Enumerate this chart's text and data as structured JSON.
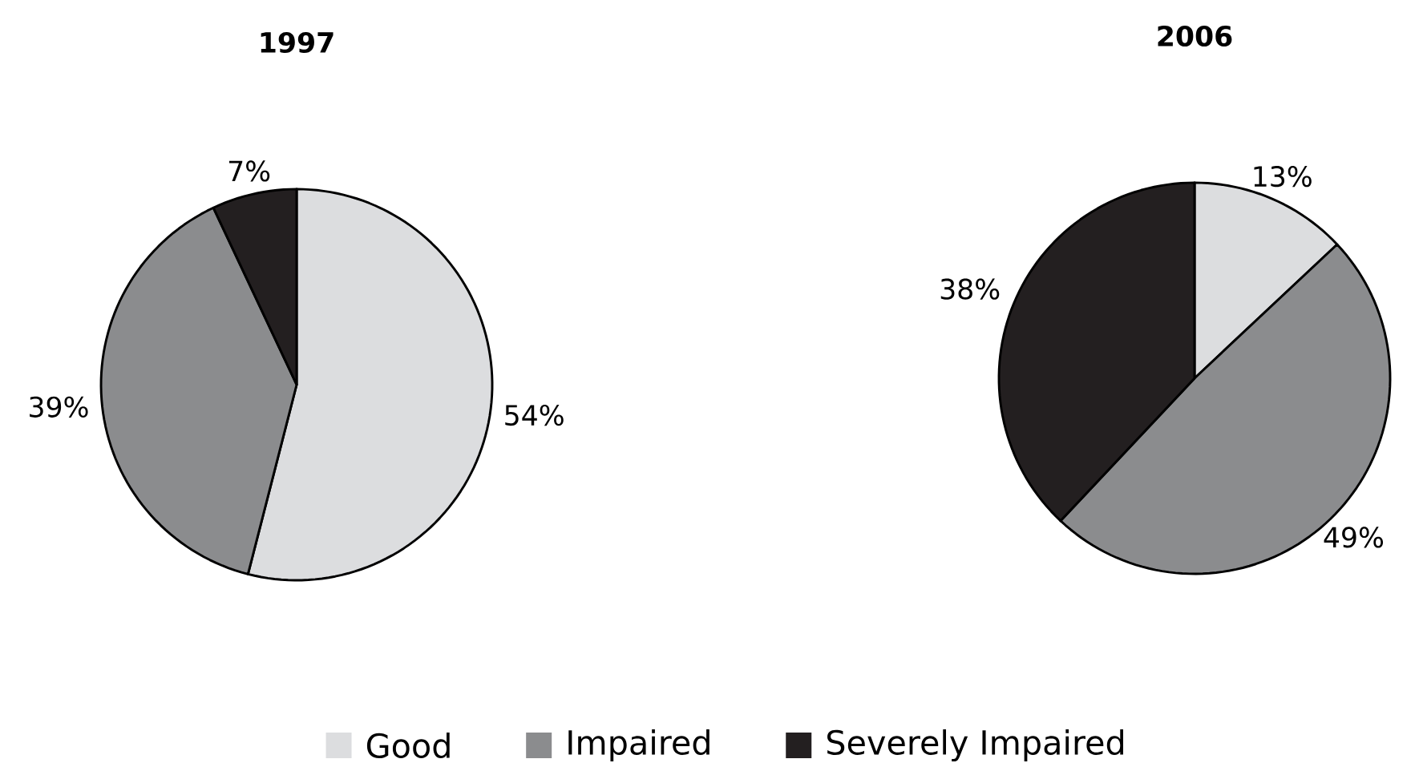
{
  "chart_data": [
    {
      "type": "pie",
      "title": "1997",
      "categories": [
        "Good",
        "Impaired",
        "Severely Impaired"
      ],
      "values": [
        54,
        39,
        7
      ],
      "value_labels": [
        "54%",
        "39%",
        "7%"
      ],
      "colors": [
        "#dcdddf",
        "#8b8c8e",
        "#231f20"
      ],
      "legend": "bottom"
    },
    {
      "type": "pie",
      "title": "2006",
      "values": [
        13,
        49,
        38
      ],
      "value_labels": [
        "13%",
        "49%",
        "38%"
      ],
      "colors": [
        "#dcdddf",
        "#8b8c8e",
        "#231f20"
      ]
    }
  ]
}
